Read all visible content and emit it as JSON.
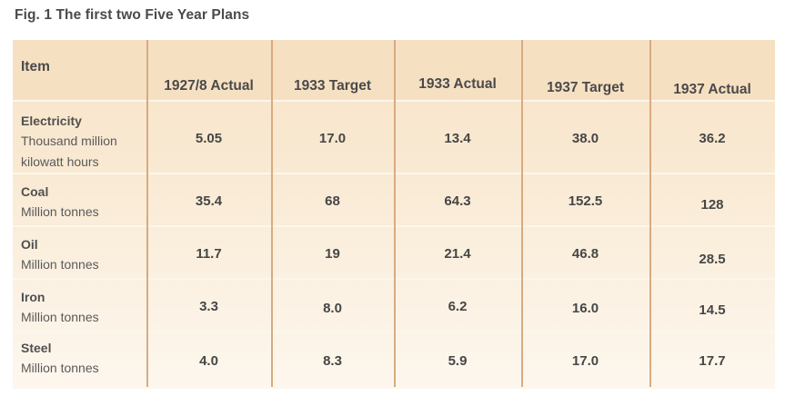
{
  "figure": {
    "title": "Fig. 1 The first two Five Year Plans"
  },
  "colors": {
    "header_bg": "#f6e0c2",
    "divider": "#d8ab80",
    "text": "#464646"
  },
  "table": {
    "headers": [
      "Item",
      "1927/8 Actual",
      "1933 Target",
      "1933 Actual",
      "1937 Target",
      "1937 Actual"
    ],
    "rows": [
      {
        "name": "Electricity",
        "unit_lines": [
          "Thousand million",
          "kilowatt hours"
        ],
        "values": [
          "5.05",
          "17.0",
          "13.4",
          "38.0",
          "36.2"
        ]
      },
      {
        "name": "Coal",
        "unit_lines": [
          "Million tonnes"
        ],
        "values": [
          "35.4",
          "68",
          "64.3",
          "152.5",
          "128"
        ]
      },
      {
        "name": "Oil",
        "unit_lines": [
          "Million tonnes"
        ],
        "values": [
          "11.7",
          "19",
          "21.4",
          "46.8",
          "28.5"
        ]
      },
      {
        "name": "Iron",
        "unit_lines": [
          "Million tonnes"
        ],
        "values": [
          "3.3",
          "8.0",
          "6.2",
          "16.0",
          "14.5"
        ]
      },
      {
        "name": "Steel",
        "unit_lines": [
          "Million tonnes"
        ],
        "values": [
          "4.0",
          "8.3",
          "5.9",
          "17.0",
          "17.7"
        ]
      }
    ]
  }
}
